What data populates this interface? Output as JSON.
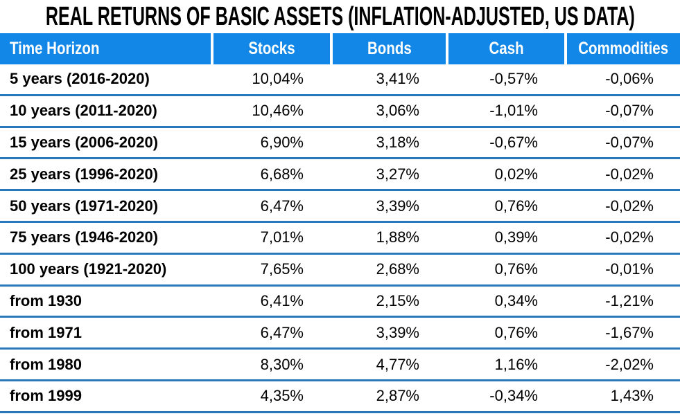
{
  "title": "REAL RETURNS OF BASIC ASSETS (INFLATION-ADJUSTED, US DATA)",
  "colors": {
    "header_bg": "#1287e8",
    "header_text": "#ffffff",
    "row_line": "#2878bb",
    "body_text": "#000000"
  },
  "table": {
    "header": [
      "Time Horizon",
      "Stocks",
      "Bonds",
      "Cash",
      "Commodities"
    ],
    "rows": [
      [
        "5 years (2016-2020)",
        "10,04%",
        "3,41%",
        "-0,57%",
        "-0,06%"
      ],
      [
        "10 years (2011-2020)",
        "10,46%",
        "3,06%",
        "-1,01%",
        "-0,07%"
      ],
      [
        "15 years (2006-2020)",
        "6,90%",
        "3,18%",
        "-0,67%",
        "-0,07%"
      ],
      [
        "25 years (1996-2020)",
        "6,68%",
        "3,27%",
        "0,02%",
        "-0,02%"
      ],
      [
        "50 years (1971-2020)",
        "6,47%",
        "3,39%",
        "0,76%",
        "-0,02%"
      ],
      [
        "75 years (1946-2020)",
        "7,01%",
        "1,88%",
        "0,39%",
        "-0,02%"
      ],
      [
        "100 years (1921-2020)",
        "7,65%",
        "2,68%",
        "0,76%",
        "-0,01%"
      ],
      [
        "from 1930",
        "6,41%",
        "2,15%",
        "0,34%",
        "-1,21%"
      ],
      [
        "from 1971",
        "6,47%",
        "3,39%",
        "0,76%",
        "-1,67%"
      ],
      [
        "from 1980",
        "8,30%",
        "4,77%",
        "1,16%",
        "-2,02%"
      ],
      [
        "from 1999",
        "4,35%",
        "2,87%",
        "-0,34%",
        "1,43%"
      ]
    ]
  },
  "chart_data": {
    "type": "table",
    "title": "REAL RETURNS OF BASIC ASSETS (INFLATION-ADJUSTED, US DATA)",
    "columns": [
      "Time Horizon",
      "Stocks",
      "Bonds",
      "Cash",
      "Commodities"
    ],
    "unit": "%",
    "decimal_separator": ",",
    "rows": [
      {
        "time_horizon": "5 years (2016-2020)",
        "stocks": 10.04,
        "bonds": 3.41,
        "cash": -0.57,
        "commodities": -0.06
      },
      {
        "time_horizon": "10 years (2011-2020)",
        "stocks": 10.46,
        "bonds": 3.06,
        "cash": -1.01,
        "commodities": -0.07
      },
      {
        "time_horizon": "15 years (2006-2020)",
        "stocks": 6.9,
        "bonds": 3.18,
        "cash": -0.67,
        "commodities": -0.07
      },
      {
        "time_horizon": "25 years (1996-2020)",
        "stocks": 6.68,
        "bonds": 3.27,
        "cash": 0.02,
        "commodities": -0.02
      },
      {
        "time_horizon": "50 years (1971-2020)",
        "stocks": 6.47,
        "bonds": 3.39,
        "cash": 0.76,
        "commodities": -0.02
      },
      {
        "time_horizon": "75 years (1946-2020)",
        "stocks": 7.01,
        "bonds": 1.88,
        "cash": 0.39,
        "commodities": -0.02
      },
      {
        "time_horizon": "100 years (1921-2020)",
        "stocks": 7.65,
        "bonds": 2.68,
        "cash": 0.76,
        "commodities": -0.01
      },
      {
        "time_horizon": "from 1930",
        "stocks": 6.41,
        "bonds": 2.15,
        "cash": 0.34,
        "commodities": -1.21
      },
      {
        "time_horizon": "from 1971",
        "stocks": 6.47,
        "bonds": 3.39,
        "cash": 0.76,
        "commodities": -1.67
      },
      {
        "time_horizon": "from 1980",
        "stocks": 8.3,
        "bonds": 4.77,
        "cash": 1.16,
        "commodities": -2.02
      },
      {
        "time_horizon": "from 1999",
        "stocks": 4.35,
        "bonds": 2.87,
        "cash": -0.34,
        "commodities": 1.43
      }
    ]
  }
}
